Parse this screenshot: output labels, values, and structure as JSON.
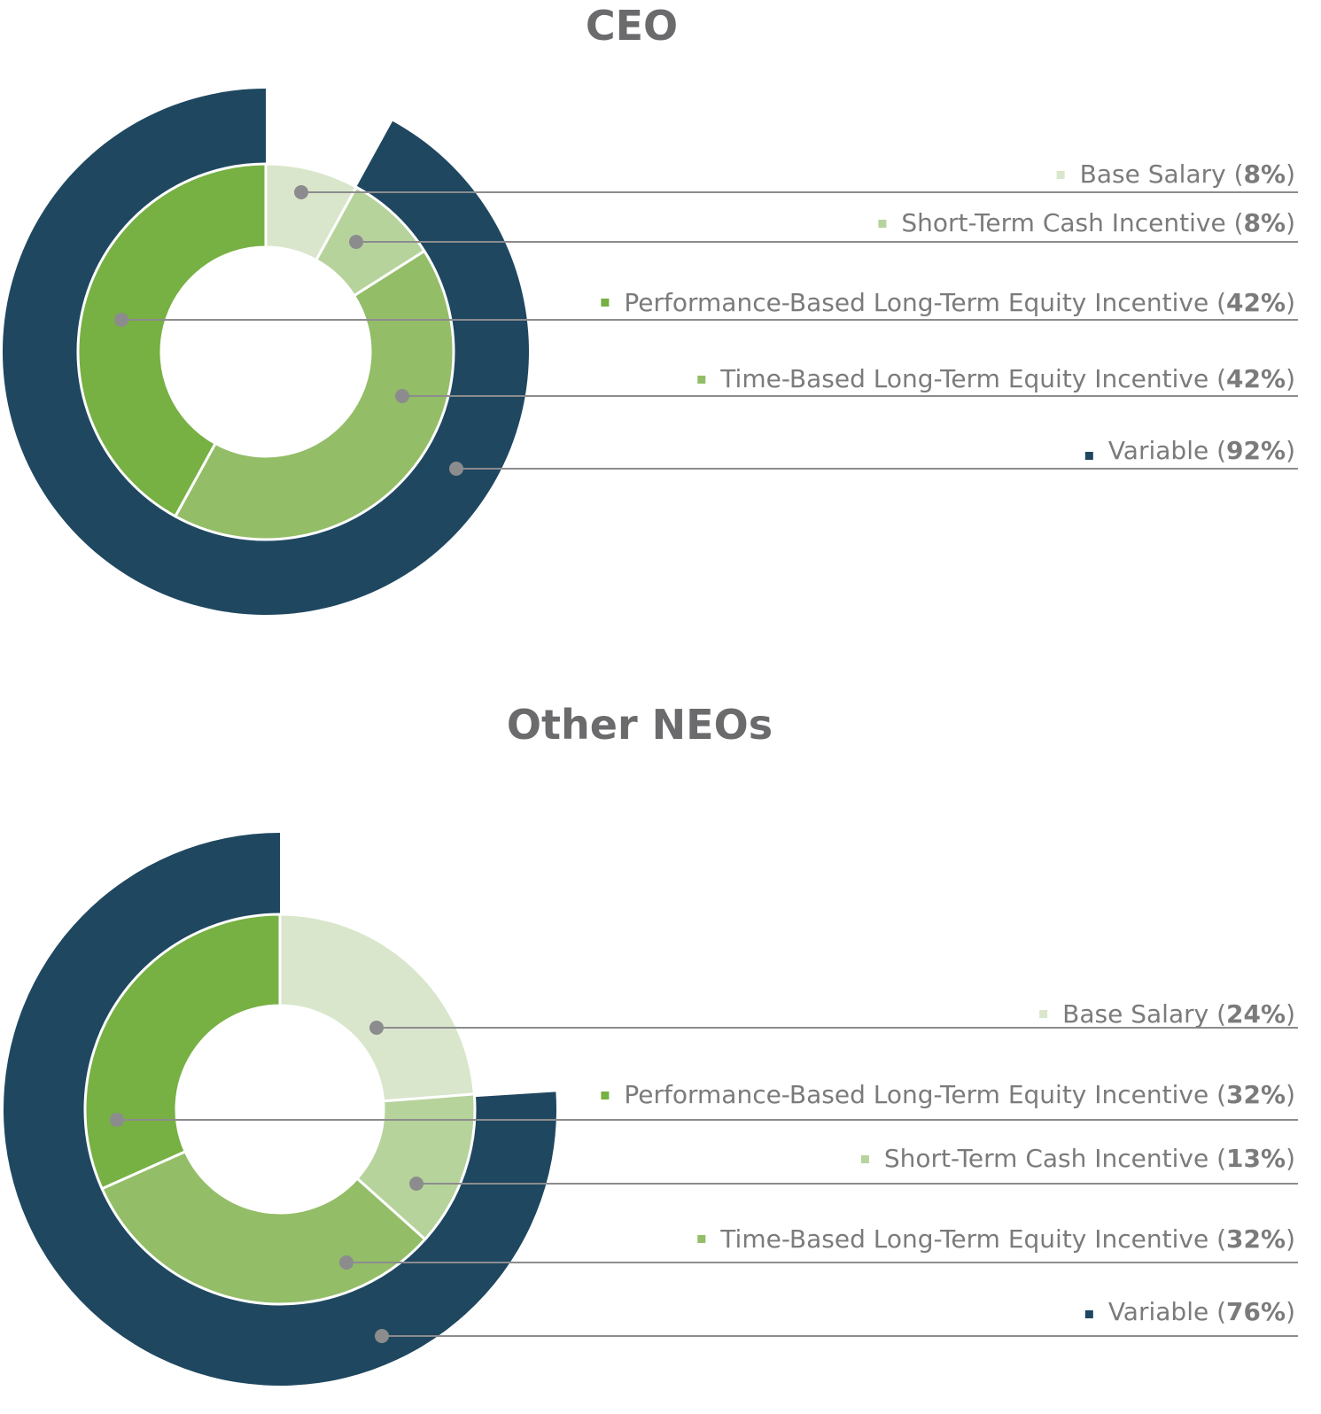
{
  "chart_data": [
    {
      "type": "pie",
      "title": "CEO",
      "inner_ring": [
        {
          "label": "Base Salary",
          "value": 8,
          "pct_text": "8%",
          "color": "#d9e6cb"
        },
        {
          "label": "Short-Term Cash Incentive",
          "value": 8,
          "pct_text": "8%",
          "color": "#b6d39c"
        },
        {
          "label": "Time-Based Long-Term Equity Incentive",
          "value": 42,
          "pct_text": "42%",
          "color": "#93bd67"
        },
        {
          "label": "Performance-Based Long-Term Equity Incentive",
          "value": 42,
          "pct_text": "42%",
          "color": "#77b043"
        }
      ],
      "outer_ring": [
        {
          "label": "Variable",
          "value": 92,
          "pct_text": "92%",
          "color": "#1f4760"
        }
      ],
      "legend_order": [
        "Base Salary",
        "Short-Term Cash Incentive",
        "Performance-Based Long-Term Equity Incentive",
        "Time-Based Long-Term Equity Incentive",
        "Variable"
      ],
      "legend_placement": "right"
    },
    {
      "type": "pie",
      "title": "Other NEOs",
      "inner_ring": [
        {
          "label": "Base Salary",
          "value": 24,
          "pct_text": "24%",
          "color": "#d9e6cb"
        },
        {
          "label": "Short-Term Cash Incentive",
          "value": 13,
          "pct_text": "13%",
          "color": "#b6d39c"
        },
        {
          "label": "Time-Based Long-Term Equity Incentive",
          "value": 32,
          "pct_text": "32%",
          "color": "#93bd67"
        },
        {
          "label": "Performance-Based Long-Term Equity Incentive",
          "value": 32,
          "pct_text": "32%",
          "color": "#77b043"
        }
      ],
      "outer_ring": [
        {
          "label": "Variable",
          "value": 76,
          "pct_text": "76%",
          "color": "#1f4760"
        }
      ],
      "legend_order": [
        "Base Salary",
        "Performance-Based Long-Term Equity Incentive",
        "Short-Term Cash Incentive",
        "Time-Based Long-Term Equity Incentive",
        "Variable"
      ],
      "legend_placement": "right"
    }
  ],
  "colors": {
    "leader_line": "#8c8c8e",
    "leader_dot": "#8c8c8e",
    "title": "#6b6b6d",
    "label": "#7b7b7d"
  }
}
